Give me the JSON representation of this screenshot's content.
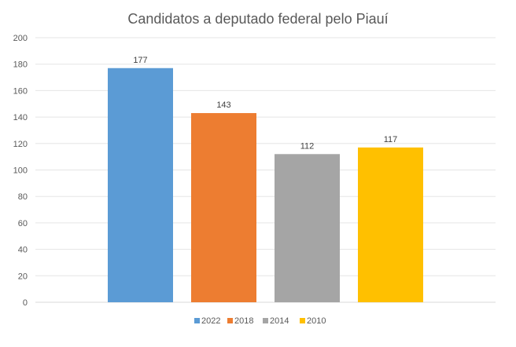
{
  "chart_data": {
    "type": "bar",
    "title": "Candidatos a deputado federal pelo Piauí",
    "xlabel": "",
    "ylabel": "",
    "ylim": [
      0,
      200
    ],
    "yticks": [
      0,
      20,
      40,
      60,
      80,
      100,
      120,
      140,
      160,
      180,
      200
    ],
    "grid": true,
    "legend_position": "bottom",
    "categories": [
      ""
    ],
    "series": [
      {
        "name": "2022",
        "values": [
          177
        ],
        "color": "#5B9BD5"
      },
      {
        "name": "2018",
        "values": [
          143
        ],
        "color": "#ED7D31"
      },
      {
        "name": "2014",
        "values": [
          112
        ],
        "color": "#A5A5A5"
      },
      {
        "name": "2010",
        "values": [
          117
        ],
        "color": "#FFC000"
      }
    ]
  }
}
